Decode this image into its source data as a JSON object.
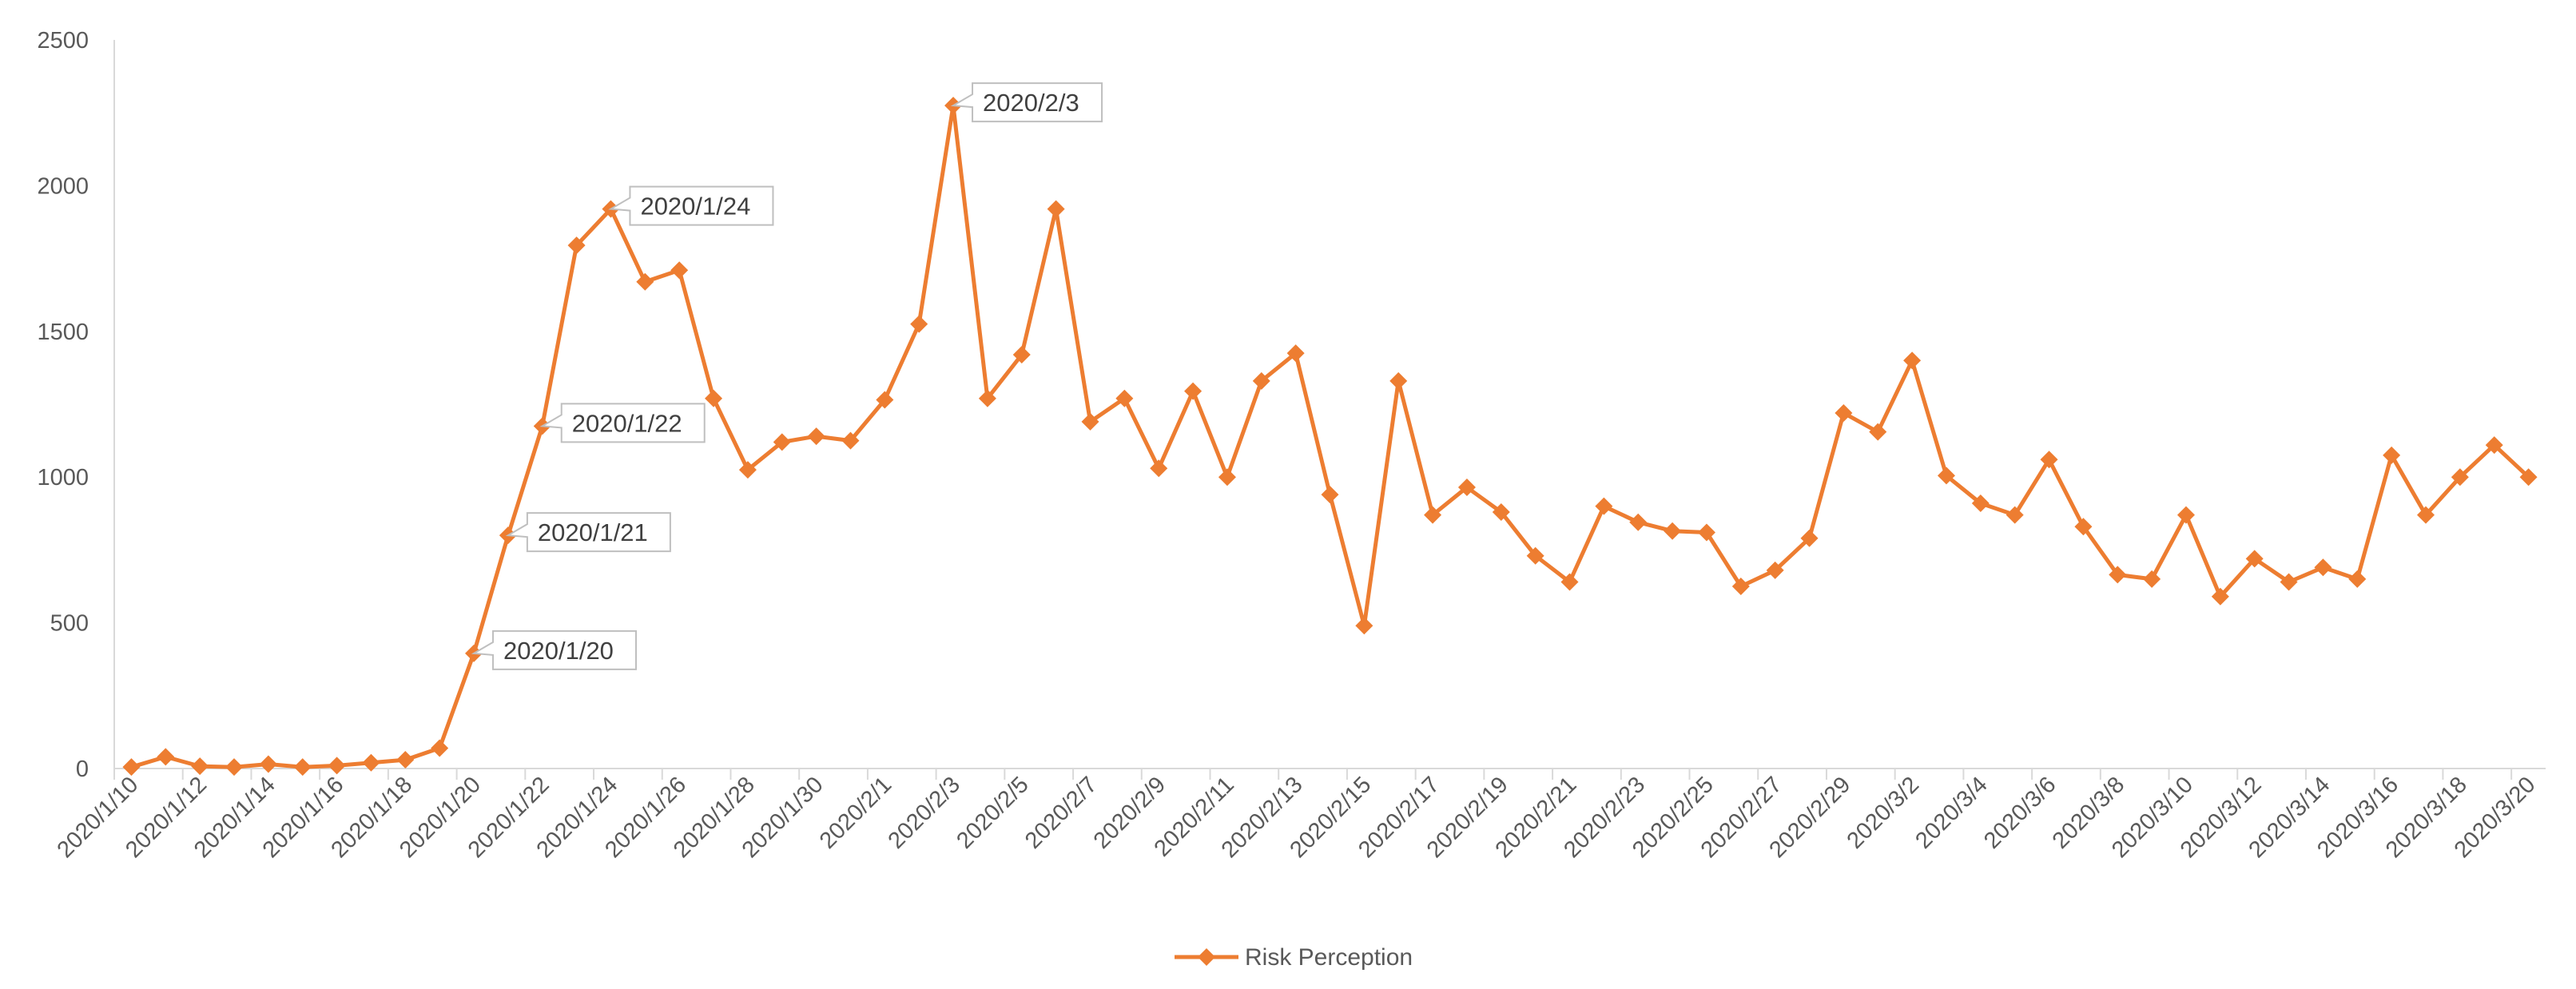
{
  "chart_data": {
    "type": "line",
    "title": "",
    "xlabel": "",
    "ylabel": "",
    "ylim": [
      0,
      2500
    ],
    "yticks": [
      0,
      500,
      1000,
      1500,
      2000,
      2500
    ],
    "grid": false,
    "legend_position": "bottom",
    "color": "#ED7D31",
    "marker": "diamond",
    "x": [
      "2020/1/10",
      "2020/1/11",
      "2020/1/12",
      "2020/1/13",
      "2020/1/14",
      "2020/1/15",
      "2020/1/16",
      "2020/1/17",
      "2020/1/18",
      "2020/1/19",
      "2020/1/20",
      "2020/1/21",
      "2020/1/22",
      "2020/1/23",
      "2020/1/24",
      "2020/1/25",
      "2020/1/26",
      "2020/1/27",
      "2020/1/28",
      "2020/1/29",
      "2020/1/30",
      "2020/1/31",
      "2020/2/1",
      "2020/2/2",
      "2020/2/3",
      "2020/2/4",
      "2020/2/5",
      "2020/2/6",
      "2020/2/7",
      "2020/2/8",
      "2020/2/9",
      "2020/2/10",
      "2020/2/11",
      "2020/2/12",
      "2020/2/13",
      "2020/2/14",
      "2020/2/15",
      "2020/2/16",
      "2020/2/17",
      "2020/2/18",
      "2020/2/19",
      "2020/2/20",
      "2020/2/21",
      "2020/2/22",
      "2020/2/23",
      "2020/2/24",
      "2020/2/25",
      "2020/2/26",
      "2020/2/27",
      "2020/2/28",
      "2020/2/29",
      "2020/3/1",
      "2020/3/2",
      "2020/3/3",
      "2020/3/4",
      "2020/3/5",
      "2020/3/6",
      "2020/3/7",
      "2020/3/8",
      "2020/3/9",
      "2020/3/10",
      "2020/3/11",
      "2020/3/12",
      "2020/3/13",
      "2020/3/14",
      "2020/3/15",
      "2020/3/16",
      "2020/3/17",
      "2020/3/18",
      "2020/3/19",
      "2020/3/20"
    ],
    "x_tick_labels": [
      "2020/1/10",
      "2020/1/12",
      "2020/1/14",
      "2020/1/16",
      "2020/1/18",
      "2020/1/20",
      "2020/1/22",
      "2020/1/24",
      "2020/1/26",
      "2020/1/28",
      "2020/1/30",
      "2020/2/1",
      "2020/2/3",
      "2020/2/5",
      "2020/2/7",
      "2020/2/9",
      "2020/2/11",
      "2020/2/13",
      "2020/2/15",
      "2020/2/17",
      "2020/2/19",
      "2020/2/21",
      "2020/2/23",
      "2020/2/25",
      "2020/2/27",
      "2020/2/29",
      "2020/3/2",
      "2020/3/4",
      "2020/3/6",
      "2020/3/8",
      "2020/3/10",
      "2020/3/12",
      "2020/3/14",
      "2020/3/16",
      "2020/3/18",
      "2020/3/20"
    ],
    "series": [
      {
        "name": "Risk Perception",
        "values": [
          5,
          40,
          8,
          5,
          15,
          5,
          10,
          20,
          30,
          70,
          395,
          800,
          1175,
          1795,
          1920,
          1670,
          1710,
          1270,
          1025,
          1120,
          1140,
          1125,
          1265,
          1525,
          2275,
          1270,
          1420,
          1920,
          1190,
          1270,
          1030,
          1295,
          1000,
          1330,
          1425,
          940,
          490,
          1330,
          870,
          965,
          880,
          730,
          640,
          900,
          845,
          815,
          810,
          625,
          680,
          790,
          1220,
          1155,
          1400,
          1005,
          910,
          870,
          1060,
          830,
          665,
          650,
          870,
          590,
          720,
          640,
          690,
          650,
          1075,
          870,
          1000,
          1110,
          1000
        ]
      }
    ],
    "annotations": [
      {
        "x": "2020/1/20",
        "label": "2020/1/20"
      },
      {
        "x": "2020/1/21",
        "label": "2020/1/21"
      },
      {
        "x": "2020/1/22",
        "label": "2020/1/22"
      },
      {
        "x": "2020/1/24",
        "label": "2020/1/24"
      },
      {
        "x": "2020/2/3",
        "label": "2020/2/3"
      }
    ]
  }
}
